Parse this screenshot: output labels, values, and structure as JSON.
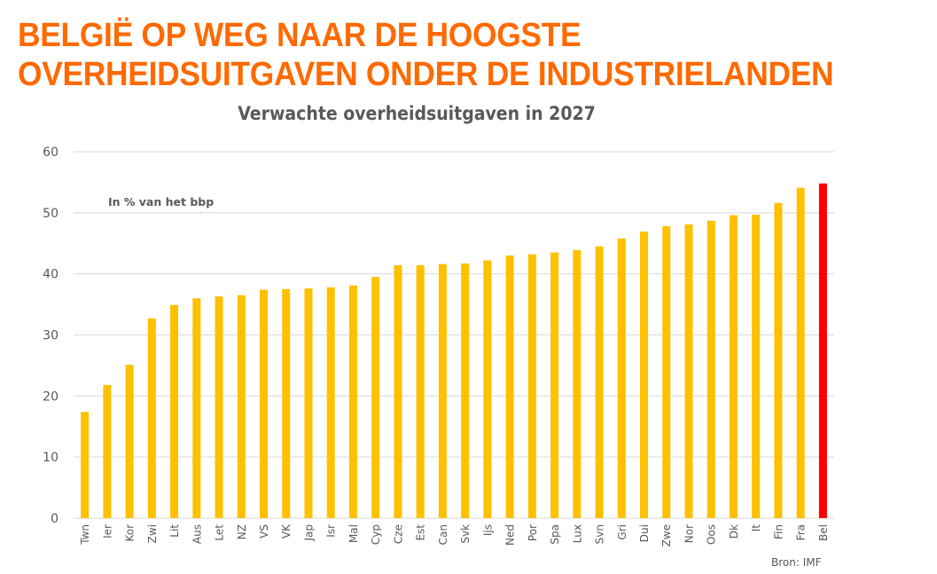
{
  "header": {
    "headline_line1": "BELGIË OP WEG NAAR DE HOOGSTE",
    "headline_line2": "OVERHEIDSUITGAVEN ONDER DE INDUSTRIELANDEN"
  },
  "chart_data": {
    "type": "bar",
    "title": "Verwachte overheidsuitgaven in 2027",
    "annotation": "In % van het bbp",
    "source": "Bron: IMF",
    "xlabel": "",
    "ylabel": "",
    "ylim": [
      0,
      60
    ],
    "yticks": [
      0,
      10,
      20,
      30,
      40,
      50,
      60
    ],
    "grid": true,
    "categories": [
      "Twn",
      "Ier",
      "Kor",
      "Zwi",
      "Lit",
      "Aus",
      "Let",
      "NZ",
      "VS",
      "VK",
      "Jap",
      "Isr",
      "Mal",
      "Cyp",
      "Cze",
      "Est",
      "Can",
      "Svk",
      "Ijs",
      "Ned",
      "Por",
      "Spa",
      "Lux",
      "Svn",
      "Gri",
      "Dui",
      "Zwe",
      "Nor",
      "Oos",
      "Dk",
      "It",
      "Fin",
      "Fra",
      "Bel"
    ],
    "values": [
      17.4,
      21.8,
      25.1,
      32.7,
      34.9,
      36.0,
      36.3,
      36.5,
      37.4,
      37.5,
      37.6,
      37.8,
      38.1,
      39.5,
      41.4,
      41.4,
      41.6,
      41.7,
      42.2,
      43.0,
      43.2,
      43.5,
      43.9,
      44.5,
      45.8,
      46.9,
      47.8,
      48.1,
      48.7,
      49.6,
      49.7,
      51.6,
      54.1,
      54.8
    ],
    "highlight": "Bel",
    "colors": {
      "default": "#ffc000",
      "highlight": "#ff0000",
      "grid": "#d9d9d9",
      "text": "#595959",
      "headline": "#ff6a00"
    }
  }
}
